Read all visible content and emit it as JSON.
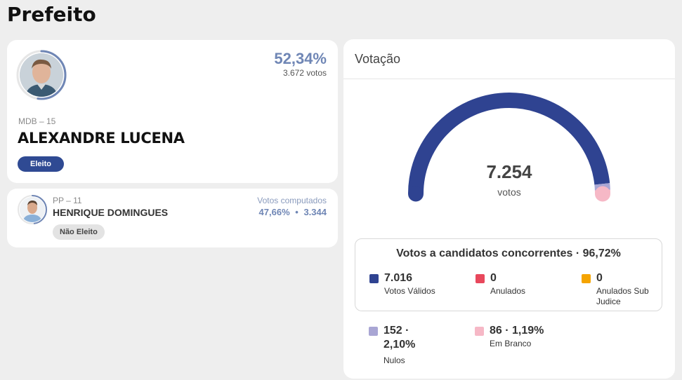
{
  "page": {
    "title": "Prefeito"
  },
  "winner": {
    "percent": "52,34%",
    "votes": "3.672 votos",
    "party": "MDB – 15",
    "name": "ALEXANDRE LUCENA",
    "status": "Eleito",
    "ring_fraction": 0.5234
  },
  "runner_up": {
    "party": "PP – 11",
    "name": "HENRIQUE DOMINGUES",
    "computed_label": "Votos computados",
    "percent": "47,66%",
    "separator": "•",
    "votes": "3.344",
    "status": "Não Eleito",
    "ring_fraction": 0.4766
  },
  "votacao": {
    "title": "Votação",
    "total": "7.254",
    "total_unit": "votos",
    "gauge_segments": [
      {
        "name": "Votos Válidos",
        "value": 7016,
        "color": "#2f4391"
      },
      {
        "name": "Anulados",
        "value": 0,
        "color": "#e8485c"
      },
      {
        "name": "Anulados Sub Judice",
        "value": 0,
        "color": "#f5a400"
      },
      {
        "name": "Nulos",
        "value": 152,
        "color": "#a9a6d4"
      },
      {
        "name": "Em Branco",
        "value": 86,
        "color": "#f6b8c6"
      }
    ],
    "box_title": "Votos a candidatos concorrentes · 96,72%",
    "in_box": [
      {
        "value": "7.016",
        "label": "Votos Válidos",
        "color": "#2f4391"
      },
      {
        "value": "0",
        "label": "Anulados",
        "color": "#e8485c"
      },
      {
        "value": "0",
        "label_line1": "Anulados Sub",
        "label_line2": "Judice",
        "color": "#f5a400"
      }
    ],
    "outside": [
      {
        "value_line1": "152 ·",
        "value_line2": "2,10%",
        "label": "Nulos",
        "color": "#a9a6d4"
      },
      {
        "value": "86 · 1,19%",
        "label": "Em Branco",
        "color": "#f6b8c6"
      }
    ]
  }
}
